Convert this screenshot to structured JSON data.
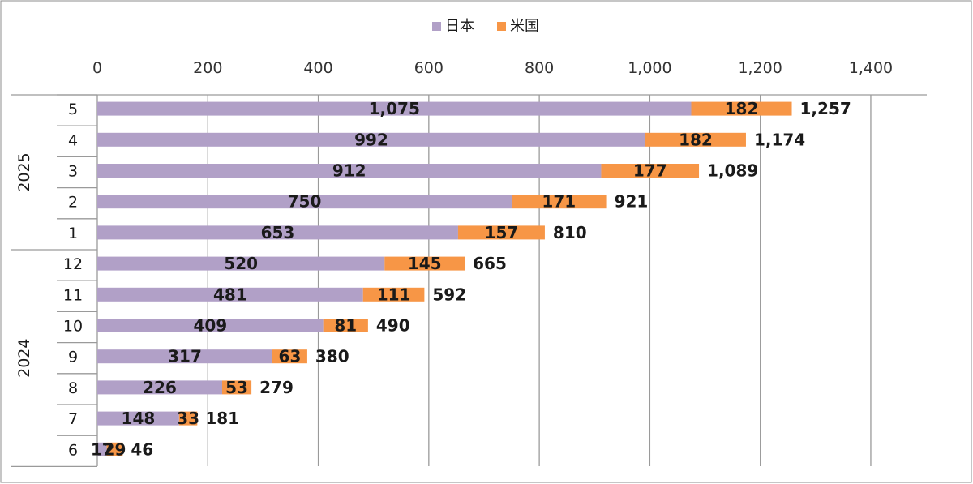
{
  "chart_data": {
    "type": "bar",
    "orientation": "horizontal",
    "stacked": true,
    "legend_position": "top",
    "x_ticks": [
      "0",
      "200",
      "400",
      "600",
      "800",
      "1,000",
      "1,200",
      "1,400"
    ],
    "xlim": [
      0,
      1400
    ],
    "grid": true,
    "groups": [
      {
        "label": "2025",
        "categories": [
          "5",
          "4",
          "3",
          "2",
          "1"
        ]
      },
      {
        "label": "2024",
        "categories": [
          "12",
          "11",
          "10",
          "9",
          "8",
          "7",
          "6"
        ]
      }
    ],
    "categories": [
      "5",
      "4",
      "3",
      "2",
      "1",
      "12",
      "11",
      "10",
      "9",
      "8",
      "7",
      "6"
    ],
    "series": [
      {
        "name": "日本",
        "color": "#b1a0c7",
        "values": [
          1075,
          992,
          912,
          750,
          653,
          520,
          481,
          409,
          317,
          226,
          148,
          17
        ],
        "labels": [
          "1,075",
          "992",
          "912",
          "750",
          "653",
          "520",
          "481",
          "409",
          "317",
          "226",
          "148",
          "17"
        ]
      },
      {
        "name": "米国",
        "color": "#f79646",
        "values": [
          182,
          182,
          177,
          171,
          157,
          145,
          111,
          81,
          63,
          53,
          33,
          29
        ],
        "labels": [
          "182",
          "182",
          "177",
          "171",
          "157",
          "145",
          "111",
          "81",
          "63",
          "53",
          "33",
          "29"
        ]
      }
    ],
    "totals": [
      1257,
      1174,
      1089,
      921,
      810,
      665,
      592,
      490,
      380,
      279,
      181,
      46
    ],
    "total_labels": [
      "1,257",
      "1,174",
      "1,089",
      "921",
      "810",
      "665",
      "592",
      "490",
      "380",
      "279",
      "181",
      "46"
    ]
  }
}
